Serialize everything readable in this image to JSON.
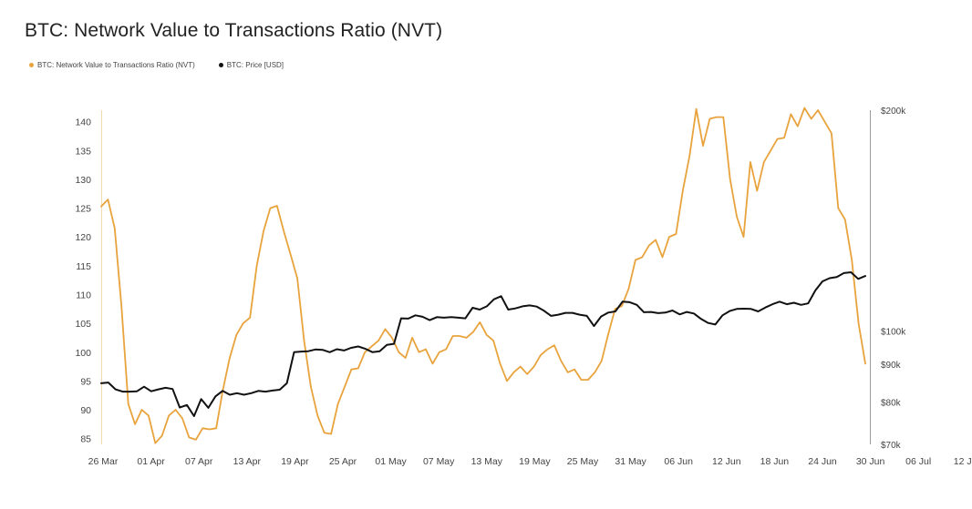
{
  "chart_data": {
    "type": "line",
    "title": "BTC: Network Value to Transactions Ratio (NVT)",
    "x_tick_labels": [
      "26 Mar",
      "01 Apr",
      "07 Apr",
      "13 Apr",
      "19 Apr",
      "25 Apr",
      "01 May",
      "07 May",
      "13 May",
      "19 May",
      "25 May",
      "31 May",
      "06 Jun",
      "12 Jun",
      "18 Jun",
      "24 Jun",
      "30 Jun",
      "06 Jul",
      "12 Jul"
    ],
    "left_axis": {
      "ylim": [
        84,
        142
      ],
      "ticks": [
        85,
        90,
        95,
        100,
        105,
        110,
        115,
        120,
        125,
        130,
        135,
        140
      ]
    },
    "right_axis": {
      "scale": "log",
      "ylim": [
        70000,
        200000
      ],
      "tick_values": [
        70000,
        80000,
        90000,
        100000,
        200000
      ],
      "tick_labels": [
        "$70k",
        "$80k",
        "$90k",
        "$100k",
        "$200k"
      ]
    },
    "legend_position": "top-left",
    "series": [
      {
        "name": "BTC: Network Value to Transactions Ratio (NVT)",
        "color": "#E8A33D",
        "axis": "left",
        "values": [
          125.3,
          126.5,
          121.5,
          108,
          91,
          87.5,
          90,
          89,
          84.2,
          85.5,
          89,
          90,
          88.5,
          85.2,
          84.8,
          86.8,
          86.6,
          86.8,
          93.5,
          99,
          103,
          105,
          106,
          115,
          121,
          125,
          125.4,
          121,
          117,
          112.8,
          102,
          94,
          89,
          86,
          85.8,
          91,
          94,
          97,
          97.2,
          100,
          101,
          102,
          104,
          102.5,
          100,
          99,
          102.5,
          100,
          100.5,
          98,
          100,
          100.5,
          102.8,
          102.8,
          102.5,
          103.5,
          105.2,
          103,
          102,
          98,
          95,
          96.5,
          97.5,
          96.2,
          97.5,
          99.5,
          100.5,
          101.2,
          98.5,
          96.5,
          97,
          95.2,
          95.2,
          96.5,
          98.5,
          103.2,
          107.5,
          108,
          111,
          116,
          116.5,
          118.5,
          119.5,
          116.5,
          120,
          120.5,
          128,
          134,
          142.2,
          135.8,
          140.5,
          140.8,
          140.8,
          130,
          123.5,
          120,
          133,
          128,
          133,
          135,
          137,
          137.2,
          141.3,
          139.2,
          142.4,
          140.5,
          142,
          140,
          138,
          125,
          123,
          116,
          105,
          98
        ]
      },
      {
        "name": "BTC: Price [USD]",
        "color": "#111111",
        "axis": "right",
        "values": [
          84800,
          85000,
          83200,
          82600,
          82600,
          82700,
          83900,
          82700,
          83200,
          83600,
          83300,
          78600,
          79200,
          76500,
          80700,
          78500,
          81400,
          82800,
          81800,
          82200,
          81800,
          82200,
          82800,
          82600,
          82900,
          83100,
          84800,
          93500,
          93700,
          93800,
          94300,
          94200,
          93500,
          94400,
          94000,
          94800,
          95200,
          94500,
          93500,
          93800,
          95700,
          96000,
          104000,
          103900,
          105000,
          104500,
          103400,
          104400,
          104200,
          104400,
          104200,
          104000,
          107500,
          106900,
          108000,
          110400,
          111500,
          106900,
          107300,
          108000,
          108300,
          107900,
          106500,
          104800,
          105200,
          105800,
          105800,
          105200,
          104800,
          101500,
          104600,
          105900,
          106300,
          109600,
          109400,
          108500,
          106000,
          106100,
          105700,
          105900,
          106600,
          105300,
          106100,
          105600,
          103800,
          102500,
          102000,
          105000,
          106400,
          107100,
          107200,
          107100,
          106300,
          107600,
          108700,
          109600,
          108700,
          109200,
          108500,
          109000,
          113500,
          116800,
          118000,
          118400,
          119900,
          120200,
          117700,
          118800
        ]
      }
    ]
  }
}
